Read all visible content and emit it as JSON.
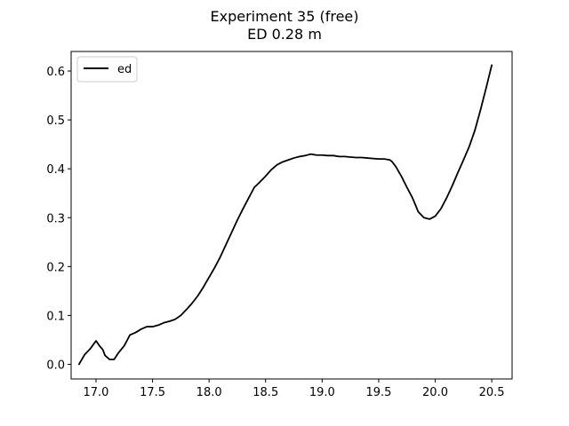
{
  "chart_data": {
    "type": "line",
    "title": "Experiment 35 (free)",
    "subtitle": "ED 0.28 m",
    "xlabel": "",
    "ylabel": "",
    "xlim": [
      16.78,
      20.68
    ],
    "ylim": [
      -0.03,
      0.64
    ],
    "xticks": [
      17.0,
      17.5,
      18.0,
      18.5,
      19.0,
      19.5,
      20.0,
      20.5
    ],
    "xtick_labels": [
      "17.0",
      "17.5",
      "18.0",
      "18.5",
      "19.0",
      "19.5",
      "20.0",
      "20.5"
    ],
    "yticks": [
      0.0,
      0.1,
      0.2,
      0.3,
      0.4,
      0.5,
      0.6
    ],
    "ytick_labels": [
      "0.0",
      "0.1",
      "0.2",
      "0.3",
      "0.4",
      "0.5",
      "0.6"
    ],
    "grid": false,
    "legend_position": "top-left",
    "series": [
      {
        "name": "ed",
        "color": "#000000",
        "x": [
          16.85,
          16.9,
          16.95,
          17.0,
          17.03,
          17.06,
          17.08,
          17.12,
          17.16,
          17.2,
          17.25,
          17.3,
          17.35,
          17.4,
          17.45,
          17.5,
          17.55,
          17.6,
          17.65,
          17.7,
          17.75,
          17.8,
          17.85,
          17.9,
          17.95,
          18.0,
          18.05,
          18.1,
          18.15,
          18.2,
          18.25,
          18.3,
          18.35,
          18.4,
          18.45,
          18.5,
          18.55,
          18.6,
          18.65,
          18.7,
          18.75,
          18.8,
          18.85,
          18.9,
          18.95,
          19.0,
          19.05,
          19.1,
          19.15,
          19.2,
          19.25,
          19.3,
          19.35,
          19.4,
          19.45,
          19.5,
          19.55,
          19.6,
          19.62,
          19.65,
          19.7,
          19.75,
          19.8,
          19.85,
          19.9,
          19.95,
          20.0,
          20.05,
          20.1,
          20.15,
          20.2,
          20.25,
          20.3,
          20.35,
          20.4,
          20.45,
          20.5
        ],
        "y": [
          0.0,
          0.02,
          0.032,
          0.048,
          0.038,
          0.03,
          0.018,
          0.01,
          0.01,
          0.024,
          0.038,
          0.06,
          0.065,
          0.072,
          0.077,
          0.077,
          0.08,
          0.085,
          0.088,
          0.092,
          0.1,
          0.112,
          0.125,
          0.14,
          0.158,
          0.178,
          0.198,
          0.22,
          0.245,
          0.27,
          0.295,
          0.318,
          0.34,
          0.362,
          0.373,
          0.385,
          0.398,
          0.408,
          0.414,
          0.418,
          0.422,
          0.425,
          0.427,
          0.43,
          0.428,
          0.428,
          0.427,
          0.427,
          0.425,
          0.425,
          0.424,
          0.423,
          0.423,
          0.422,
          0.421,
          0.42,
          0.42,
          0.418,
          0.414,
          0.405,
          0.385,
          0.362,
          0.34,
          0.312,
          0.3,
          0.297,
          0.303,
          0.318,
          0.34,
          0.365,
          0.392,
          0.418,
          0.445,
          0.478,
          0.52,
          0.565,
          0.612
        ]
      }
    ]
  }
}
